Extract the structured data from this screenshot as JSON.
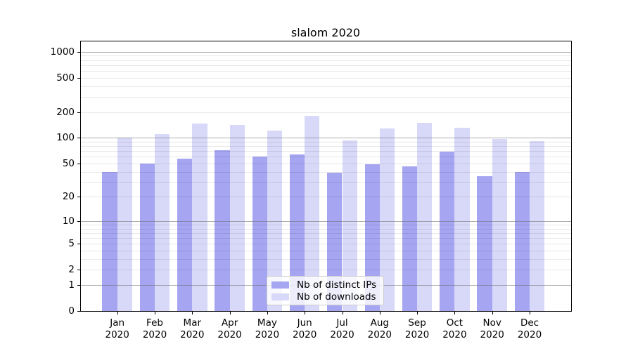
{
  "chart_data": {
    "type": "bar",
    "title": "slalom 2020",
    "scale": "log1p",
    "ylim": [
      0,
      1340
    ],
    "grid": true,
    "legend_position": "lower center",
    "categories": [
      {
        "month": "Jan",
        "year": "2020"
      },
      {
        "month": "Feb",
        "year": "2020"
      },
      {
        "month": "Mar",
        "year": "2020"
      },
      {
        "month": "Apr",
        "year": "2020"
      },
      {
        "month": "May",
        "year": "2020"
      },
      {
        "month": "Jun",
        "year": "2020"
      },
      {
        "month": "Jul",
        "year": "2020"
      },
      {
        "month": "Aug",
        "year": "2020"
      },
      {
        "month": "Sep",
        "year": "2020"
      },
      {
        "month": "Oct",
        "year": "2020"
      },
      {
        "month": "Nov",
        "year": "2020"
      },
      {
        "month": "Dec",
        "year": "2020"
      }
    ],
    "y_ticks": [
      1000,
      500,
      200,
      100,
      50,
      20,
      10,
      5,
      2,
      1,
      0
    ],
    "grid_decades": [
      1,
      10,
      100,
      1000
    ],
    "series": [
      {
        "name": "Nb of distinct IPs",
        "color": "#a5a5f1",
        "values": [
          40,
          50,
          57,
          72,
          60,
          64,
          39,
          49,
          46,
          69,
          35,
          40
        ]
      },
      {
        "name": "Nb of downloads",
        "color": "#d8d8f8",
        "values": [
          100,
          111,
          147,
          141,
          122,
          181,
          94,
          128,
          150,
          130,
          97,
          91
        ]
      }
    ]
  }
}
